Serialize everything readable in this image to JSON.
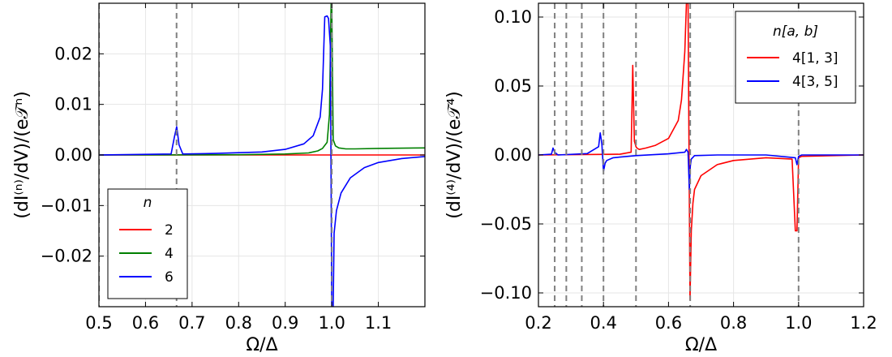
{
  "chart_data": [
    {
      "type": "line",
      "xlabel": "Ω/Δ",
      "ylabel": "(dI⁽ⁿ⁾/dV)/(e𝒯ⁿ)",
      "xlim": [
        0.5,
        1.2
      ],
      "ylim": [
        -0.03,
        0.03
      ],
      "xticks": [
        0.5,
        0.6,
        0.7,
        0.8,
        0.9,
        1.0,
        1.1
      ],
      "xtick_labels": [
        "0.5",
        "0.6",
        "0.7",
        "0.8",
        "0.9",
        "1.0",
        "1.1"
      ],
      "yticks": [
        -0.02,
        -0.01,
        0.0,
        0.01,
        0.02
      ],
      "ytick_labels": [
        "−0.02",
        "−0.01",
        "0.00",
        "0.01",
        "0.02"
      ],
      "grid": true,
      "vlines": [
        0.5,
        0.6667,
        1.0
      ],
      "legend": {
        "title": "n",
        "placement": "lower-left"
      },
      "series": [
        {
          "name": "2",
          "color": "#ff0000",
          "x": [
            0.5,
            0.9,
            0.98,
            0.995,
            1.0,
            1.005,
            1.02,
            1.2
          ],
          "y": [
            0,
            0,
            0,
            0,
            0,
            0,
            0,
            0
          ]
        },
        {
          "name": "4",
          "color": "#008000",
          "x": [
            0.5,
            0.8,
            0.9,
            0.95,
            0.97,
            0.98,
            0.99,
            0.995,
            0.9985,
            1.0,
            1.003,
            1.008,
            1.015,
            1.03,
            1.05,
            1.1,
            1.2
          ],
          "y": [
            0,
            5e-05,
            0.0002,
            0.0004,
            0.0008,
            0.0013,
            0.0025,
            0.008,
            0.03,
            0.03,
            0.003,
            0.0018,
            0.0014,
            0.0012,
            0.0012,
            0.0013,
            0.0014
          ]
        },
        {
          "name": "6",
          "color": "#0000ff",
          "x": [
            0.5,
            0.655,
            0.662,
            0.667,
            0.672,
            0.68,
            0.75,
            0.85,
            0.9,
            0.94,
            0.96,
            0.975,
            0.98,
            0.985,
            0.99,
            0.993,
            0.997,
            1.0,
            1.003,
            1.005,
            1.01,
            1.02,
            1.04,
            1.07,
            1.1,
            1.15,
            1.2
          ],
          "y": [
            0,
            0.0002,
            0.0035,
            0.0056,
            0.002,
            0.0002,
            0.0003,
            0.0006,
            0.0011,
            0.0022,
            0.0038,
            0.0075,
            0.013,
            0.0273,
            0.0275,
            0.027,
            0.0215,
            -0.03,
            -0.03,
            -0.0155,
            -0.011,
            -0.0075,
            -0.0045,
            -0.0025,
            -0.0015,
            -0.0007,
            -0.0003
          ]
        }
      ]
    },
    {
      "type": "line",
      "xlabel": "Ω/Δ",
      "ylabel": "(dI⁽⁴⁾/dV)/(e𝒯⁴)",
      "xlim": [
        0.2,
        1.2
      ],
      "ylim": [
        -0.11,
        0.11
      ],
      "xticks": [
        0.2,
        0.4,
        0.6,
        0.8,
        1.0,
        1.2
      ],
      "xtick_labels": [
        "0.2",
        "0.4",
        "0.6",
        "0.8",
        "1.0",
        "1.2"
      ],
      "yticks": [
        -0.1,
        -0.05,
        0.0,
        0.05,
        0.1
      ],
      "ytick_labels": [
        "−0.10",
        "−0.05",
        "0.00",
        "0.05",
        "0.10"
      ],
      "grid": true,
      "vlines": [
        0.25,
        0.2857,
        0.3333,
        0.4,
        0.5,
        0.6667,
        1.0
      ],
      "legend": {
        "title": "n[a, b]",
        "placement": "top-right"
      },
      "series": [
        {
          "name": "4[1, 3]",
          "color": "#ff0000",
          "x": [
            0.2,
            0.45,
            0.485,
            0.49,
            0.495,
            0.5,
            0.503,
            0.51,
            0.53,
            0.56,
            0.6,
            0.63,
            0.64,
            0.65,
            0.655,
            0.66,
            0.666,
            0.668,
            0.67,
            0.675,
            0.68,
            0.7,
            0.75,
            0.8,
            0.9,
            0.98,
            0.99,
            0.995,
            1.0,
            1.01,
            1.2
          ],
          "y": [
            0,
            0.0005,
            0.002,
            0.065,
            0.01,
            0.006,
            0.005,
            0.004,
            0.005,
            0.007,
            0.012,
            0.025,
            0.04,
            0.075,
            0.11,
            0.11,
            -0.105,
            -0.08,
            -0.055,
            -0.035,
            -0.025,
            -0.015,
            -0.007,
            -0.004,
            -0.002,
            -0.003,
            -0.055,
            -0.055,
            -0.002,
            -0.001,
            0
          ]
        },
        {
          "name": "4[3, 5]",
          "color": "#0000ff",
          "x": [
            0.2,
            0.24,
            0.245,
            0.25,
            0.26,
            0.35,
            0.385,
            0.39,
            0.395,
            0.4,
            0.405,
            0.41,
            0.43,
            0.5,
            0.6,
            0.65,
            0.655,
            0.66,
            0.664,
            0.667,
            0.67,
            0.68,
            0.75,
            0.9,
            0.99,
            0.995,
            1.0,
            1.01,
            1.2
          ],
          "y": [
            0,
            0.0005,
            0.005,
            0.002,
            0,
            0.001,
            0.006,
            0.016,
            0.008,
            -0.012,
            -0.006,
            -0.004,
            -0.002,
            -0.0005,
            0.0008,
            0.002,
            0.004,
            0.002,
            -0.025,
            -0.008,
            -0.003,
            -0.0005,
            0,
            0,
            -0.002,
            -0.007,
            -0.001,
            0,
            0
          ]
        }
      ]
    }
  ]
}
